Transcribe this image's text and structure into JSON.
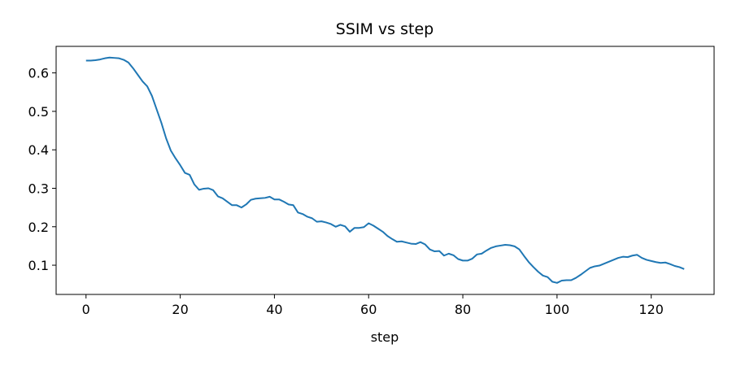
{
  "chart_data": {
    "type": "line",
    "title": "SSIM vs step",
    "xlabel": "step",
    "x": [
      0,
      1,
      2,
      3,
      4,
      5,
      6,
      7,
      8,
      9,
      10,
      11,
      12,
      13,
      14,
      15,
      16,
      17,
      18,
      19,
      20,
      21,
      22,
      23,
      24,
      25,
      26,
      27,
      28,
      29,
      30,
      31,
      32,
      33,
      34,
      35,
      36,
      37,
      38,
      39,
      40,
      41,
      42,
      43,
      44,
      45,
      46,
      47,
      48,
      49,
      50,
      51,
      52,
      53,
      54,
      55,
      56,
      57,
      58,
      59,
      60,
      61,
      62,
      63,
      64,
      65,
      66,
      67,
      68,
      69,
      70,
      71,
      72,
      73,
      74,
      75,
      76,
      77,
      78,
      79,
      80,
      81,
      82,
      83,
      84,
      85,
      86,
      87,
      88,
      89,
      90,
      91,
      92,
      93,
      94,
      95,
      96,
      97,
      98,
      99,
      100,
      101,
      102,
      103,
      104,
      105,
      106,
      107,
      108,
      109,
      110,
      111,
      112,
      113,
      114,
      115,
      116,
      117,
      118,
      119,
      120,
      121,
      122,
      123,
      124,
      125,
      126,
      127
    ],
    "series": [
      {
        "name": "SSIM",
        "color": "#1f77b4",
        "values": [
          0.632,
          0.632,
          0.633,
          0.635,
          0.638,
          0.64,
          0.639,
          0.638,
          0.634,
          0.627,
          0.612,
          0.595,
          0.578,
          0.565,
          0.54,
          0.505,
          0.47,
          0.43,
          0.398,
          0.378,
          0.36,
          0.34,
          0.335,
          0.31,
          0.296,
          0.299,
          0.3,
          0.295,
          0.279,
          0.274,
          0.265,
          0.256,
          0.256,
          0.25,
          0.258,
          0.27,
          0.273,
          0.274,
          0.275,
          0.278,
          0.271,
          0.271,
          0.265,
          0.258,
          0.256,
          0.237,
          0.233,
          0.226,
          0.222,
          0.213,
          0.214,
          0.211,
          0.207,
          0.2,
          0.205,
          0.201,
          0.187,
          0.197,
          0.197,
          0.199,
          0.209,
          0.203,
          0.195,
          0.187,
          0.176,
          0.168,
          0.161,
          0.162,
          0.159,
          0.156,
          0.155,
          0.16,
          0.154,
          0.141,
          0.136,
          0.137,
          0.125,
          0.13,
          0.126,
          0.116,
          0.112,
          0.112,
          0.117,
          0.128,
          0.13,
          0.138,
          0.145,
          0.149,
          0.151,
          0.153,
          0.152,
          0.149,
          0.141,
          0.124,
          0.108,
          0.095,
          0.083,
          0.073,
          0.069,
          0.057,
          0.054,
          0.06,
          0.061,
          0.061,
          0.067,
          0.075,
          0.084,
          0.093,
          0.097,
          0.099,
          0.104,
          0.109,
          0.114,
          0.119,
          0.122,
          0.121,
          0.125,
          0.127,
          0.119,
          0.114,
          0.111,
          0.108,
          0.106,
          0.107,
          0.103,
          0.098,
          0.095,
          0.09
        ]
      }
    ],
    "xlim": [
      -6.35,
      133.35
    ],
    "xticks": [
      0,
      20,
      40,
      60,
      80,
      100,
      120
    ],
    "ylim": [
      0.024,
      0.669
    ],
    "yticks": [
      0.1,
      0.2,
      0.3,
      0.4,
      0.5,
      0.6
    ]
  }
}
